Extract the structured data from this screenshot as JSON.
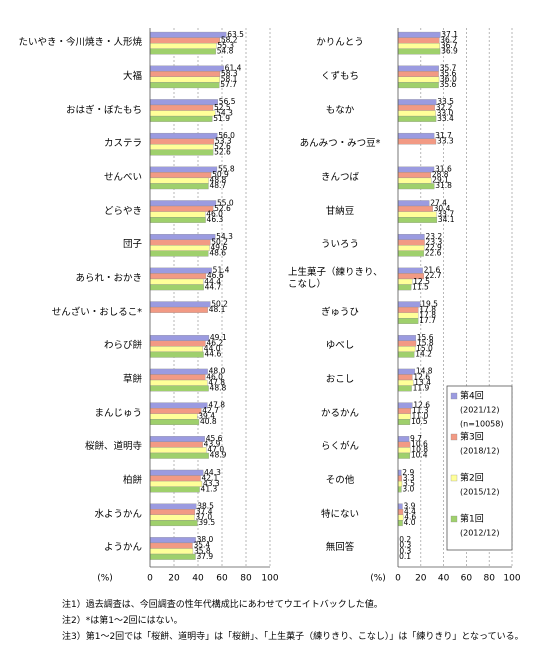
{
  "chart_data": [
    {
      "type": "bar",
      "orientation": "horizontal",
      "xlabel": "(%)",
      "categories": [
        "たいやき・今川焼き・人形焼",
        "大福",
        "おはぎ・ぼたもち",
        "カステラ",
        "せんべい",
        "どらやき",
        "団子",
        "あられ・おかき",
        "せんざい・おしるこ*",
        "わらび餅",
        "草餅",
        "まんじゅう",
        "桜餅、道明寺",
        "柏餅",
        "水ようかん",
        "ようかん"
      ],
      "series": [
        {
          "name": "第4回",
          "period": "(2021/12)",
          "note": "(n=10058)",
          "color": "#9b9be0",
          "values": [
            63.5,
            61.4,
            56.5,
            56.0,
            55.8,
            55.0,
            54.3,
            51.4,
            50.2,
            49.1,
            48.0,
            47.8,
            45.6,
            44.3,
            38.5,
            38.0
          ],
          "value_labels": [
            "63.5",
            "61.4",
            "56.5",
            "56.0",
            "55.8",
            "55.0",
            "54.3",
            "51.4",
            "50.2",
            "49.1",
            "48.0",
            "47.8",
            "45.6",
            "44.3",
            "38.5",
            "38.0"
          ]
        },
        {
          "name": "第3回",
          "period": "(2018/12)",
          "color": "#f29a84",
          "values": [
            58.2,
            58.3,
            52.5,
            53.3,
            50.9,
            52.6,
            50.2,
            46.6,
            48.1,
            46.2,
            46.0,
            42.7,
            43.9,
            42.1,
            37.4,
            35.4
          ],
          "value_labels": [
            "58.2",
            "58.3",
            "52.5",
            "53.3",
            "50.9",
            "52.6",
            "50.2",
            "46.6",
            "48.1",
            "46.2",
            "46.0",
            "42.7",
            "43.9",
            "42.1",
            "37.4",
            "35.4"
          ]
        },
        {
          "name": "第2回",
          "period": "(2015/12)",
          "color": "#ffff99",
          "values": [
            55.3,
            58.1,
            54.3,
            52.6,
            48.8,
            46.0,
            49.6,
            44.4,
            null,
            44.0,
            47.8,
            39.4,
            47.0,
            43.3,
            37.0,
            35.8
          ],
          "value_labels": [
            "55.3",
            "58.1",
            "54.3",
            "52.6",
            "48.8",
            "46.0",
            "49.6",
            "44.4",
            null,
            "44.0",
            "47.8",
            "39.4",
            "47.0",
            "43.3",
            "37.0",
            "35.8"
          ]
        },
        {
          "name": "第1回",
          "period": "(2012/12)",
          "color": "#9fd06c",
          "values": [
            54.8,
            57.7,
            51.9,
            52.6,
            48.7,
            46.3,
            48.6,
            44.7,
            null,
            44.6,
            48.8,
            40.8,
            48.9,
            41.3,
            39.5,
            37.9
          ],
          "value_labels": [
            "54.8",
            "57.7",
            "51.9",
            "52.6",
            "48.7",
            "46.3",
            "48.6",
            "44.7",
            null,
            "44.6",
            "48.8",
            "40.8",
            "48.9",
            "41.3",
            "39.5",
            "37.9"
          ]
        }
      ],
      "xlim": [
        0,
        100
      ],
      "xticks": [
        0,
        20,
        40,
        60,
        80,
        100
      ],
      "grid": true
    },
    {
      "type": "bar",
      "orientation": "horizontal",
      "xlabel": "(%)",
      "categories": [
        "かりんとう",
        "くずもち",
        "もなか",
        "あんみつ・みつ豆*",
        "きんつば",
        "甘納豆",
        "ういろう",
        "上生菓子（練りきり、こなし）",
        "ぎゅうひ",
        "ゆべし",
        "おこし",
        "かるかん",
        "らくがん",
        "その他",
        "特にない",
        "無回答"
      ],
      "series": [
        {
          "color": "#9b9be0",
          "values": [
            37.1,
            35.7,
            33.5,
            31.7,
            31.6,
            27.4,
            23.2,
            21.6,
            19.5,
            15.6,
            14.8,
            12.6,
            9.7,
            2.9,
            3.9,
            0.2
          ],
          "value_labels": [
            "37.1",
            "35.7",
            "33.5",
            "31.7",
            "31.6",
            "27.4",
            "23.2",
            "21.6",
            "19.5",
            "15.6",
            "14.8",
            "12.6",
            "9.7",
            "2.9",
            "3.9",
            "0.2"
          ]
        },
        {
          "color": "#f29a84",
          "values": [
            36.2,
            35.6,
            32.2,
            33.3,
            28.8,
            30.4,
            23.3,
            22.7,
            17.8,
            15.8,
            12.6,
            11.3,
            10.6,
            3.3,
            4.4,
            0.3
          ],
          "value_labels": [
            "36.2",
            "35.6",
            "32.2",
            "33.3",
            "28.8",
            "30.4",
            "23.3",
            "22.7",
            "17.8",
            "15.8",
            "12.6",
            "11.3",
            "10.6",
            "3.3",
            "4.4",
            "0.3"
          ]
        },
        {
          "color": "#ffff99",
          "values": [
            36.7,
            36.0,
            33.0,
            null,
            29.1,
            33.7,
            22.9,
            12.5,
            17.8,
            15.0,
            13.4,
            11.0,
            10.8,
            3.5,
            4.6,
            0.3
          ],
          "value_labels": [
            "36.7",
            "36.0",
            "33.0",
            null,
            "29.1",
            "33.7",
            "22.9",
            "12.5",
            "17.8",
            "15.0",
            "13.4",
            "11.0",
            "10.8",
            "3.5",
            "4.6",
            "0.3"
          ]
        },
        {
          "color": "#9fd06c",
          "values": [
            36.9,
            35.6,
            33.4,
            null,
            31.8,
            34.1,
            22.6,
            11.5,
            17.7,
            14.2,
            11.9,
            10.5,
            10.4,
            3.0,
            4.0,
            0.1
          ],
          "value_labels": [
            "36.9",
            "35.6",
            "33.4",
            null,
            "31.8",
            "34.1",
            "22.6",
            "11.5",
            "17.7",
            "14.2",
            "11.9",
            "10.5",
            "10.4",
            "3.0",
            "4.0",
            "0.1"
          ]
        }
      ],
      "xlim": [
        0,
        100
      ],
      "xticks": [
        0,
        20,
        40,
        60,
        80,
        100
      ],
      "grid": true
    }
  ],
  "notes": [
    "注1）過去調査は、今回調査の性年代構成比にあわせてウエイトバックした値。",
    "注2）*は第1～2回にはない。",
    "注3）第1～2回では「桜餅、道明寺」は「桜餅」、「上生菓子（練りきり、こなし）」は「練りきり」となっている。"
  ]
}
